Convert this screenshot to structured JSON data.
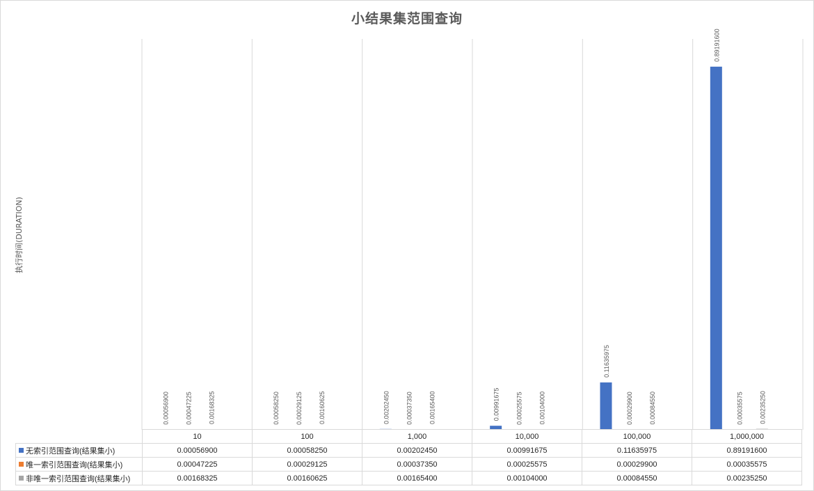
{
  "chart_data": {
    "type": "bar",
    "title": "小结果集范围查询",
    "ylabel": "执行时间(DURATION)",
    "xlabel": "",
    "categories": [
      "10",
      "100",
      "1,000",
      "10,000",
      "100,000",
      "1,000,000"
    ],
    "ylim": [
      0,
      0.96
    ],
    "grid": "vertical category separators",
    "legend": "data table below chart",
    "series": [
      {
        "name": "无索引范围查询(结果集小)",
        "color": "#4472c4",
        "values": [
          0.000569,
          0.0005825,
          0.0020245,
          0.00991675,
          0.11635975,
          0.891916
        ],
        "labels": [
          "0.00056900",
          "0.00058250",
          "0.00202450",
          "0.00991675",
          "0.11635975",
          "0.89191600"
        ]
      },
      {
        "name": "唯一索引范围查询(结果集小)",
        "color": "#ed7d31",
        "values": [
          0.00047225,
          0.00029125,
          0.0003735,
          0.00025575,
          0.000299,
          0.00035575
        ],
        "labels": [
          "0.00047225",
          "0.00029125",
          "0.00037350",
          "0.00025575",
          "0.00029900",
          "0.00035575"
        ]
      },
      {
        "name": "非唯一索引范围查询(结果集小)",
        "color": "#a5a5a5",
        "values": [
          0.00168325,
          0.00160625,
          0.001654,
          0.00104,
          0.0008455,
          0.0023525
        ],
        "labels": [
          "0.00168325",
          "0.00160625",
          "0.00165400",
          "0.00104000",
          "0.00084550",
          "0.00235250"
        ]
      }
    ]
  }
}
